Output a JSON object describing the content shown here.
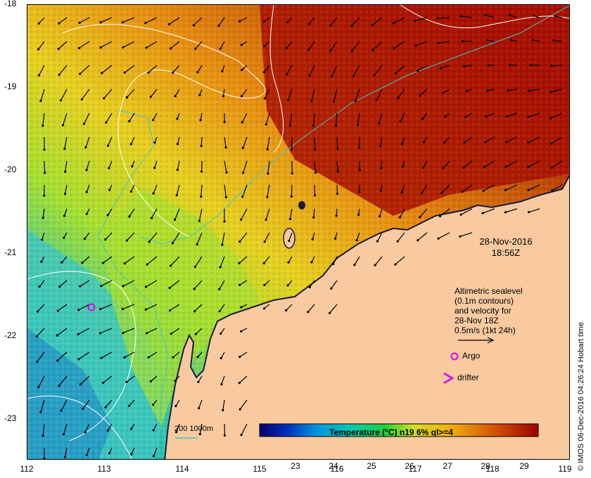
{
  "map": {
    "y_ticks": [
      "-18",
      "-19",
      "-20",
      "-21",
      "-22",
      "-23"
    ],
    "x_ticks": [
      "112",
      "113",
      "114",
      "115",
      "116",
      "117",
      "118",
      "119"
    ],
    "date_line1": "28-Nov-2016",
    "date_line2": "18:56Z",
    "legend_lines": [
      "Altimetric sealevel",
      "(0.1m contours)",
      "and velocity for",
      "28-Nov 18Z",
      "0.5m/s (1kt 24h)"
    ],
    "argo_label": "Argo",
    "drifter_label": "drifter",
    "depth_legend": "200  1000m",
    "colorbar_title": "Temperature (°C) n19 6% ql>=4",
    "colorbar_ticks": [
      "23",
      "24",
      "25",
      "26",
      "27",
      "28",
      "29"
    ],
    "credit": "© IMOS 06-Dec-2016 04:26:24 Hobart time",
    "colors": {
      "land": "#f9c99f",
      "warm": "#a00000",
      "cool": "#00b8b8",
      "contour_iso": "#40c8c8",
      "argo": "#e000e0"
    }
  }
}
